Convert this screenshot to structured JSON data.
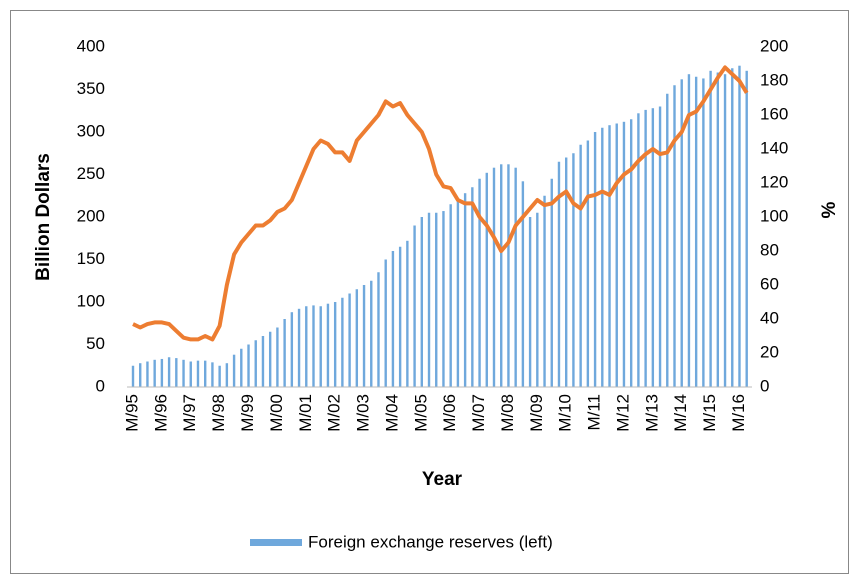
{
  "chart_data": {
    "type": "bar",
    "xlabel": "Year",
    "ylabel": "Billion Dollars",
    "y2label": "%",
    "categories": [
      "M/95",
      null,
      null,
      null,
      "M/96",
      null,
      null,
      null,
      "M/97",
      null,
      null,
      null,
      "M/98",
      null,
      null,
      null,
      "M/99",
      null,
      null,
      null,
      "M/00",
      null,
      null,
      null,
      "M/01",
      null,
      null,
      null,
      "M/02",
      null,
      null,
      null,
      "M/03",
      null,
      null,
      null,
      "M/04",
      null,
      null,
      null,
      "M/05",
      null,
      null,
      null,
      "M/06",
      null,
      null,
      null,
      "M/07",
      null,
      null,
      null,
      "M/08",
      null,
      null,
      null,
      "M/09",
      null,
      null,
      null,
      "M/10",
      null,
      null,
      null,
      "M/11",
      null,
      null,
      null,
      "M/12",
      null,
      null,
      null,
      "M/13",
      null,
      null,
      null,
      "M/14",
      null,
      null,
      null,
      "M/15",
      null,
      null,
      null,
      "M/16",
      null
    ],
    "series": [
      {
        "name": "Foreign exchange reserves (left)",
        "type": "bar",
        "color": "#6fa8dc",
        "values": [
          25,
          28,
          30,
          32,
          33,
          35,
          34,
          32,
          30,
          31,
          31,
          29,
          25,
          28,
          38,
          45,
          50,
          55,
          60,
          65,
          70,
          80,
          88,
          92,
          95,
          96,
          95,
          98,
          100,
          105,
          110,
          115,
          120,
          125,
          135,
          150,
          160,
          165,
          172,
          190,
          200,
          205,
          205,
          207,
          215,
          222,
          228,
          235,
          245,
          252,
          258,
          262,
          262,
          258,
          242,
          200,
          205,
          225,
          245,
          265,
          270,
          275,
          285,
          290,
          300,
          305,
          308,
          310,
          312,
          315,
          322,
          326,
          328,
          330,
          345,
          355,
          362,
          368,
          365,
          363,
          372,
          370,
          368,
          375,
          378,
          372
        ]
      },
      {
        "type": "line",
        "axis": "y2",
        "color": "#ed7d31",
        "values": [
          37,
          35,
          37,
          38,
          38,
          37,
          33,
          29,
          28,
          28,
          30,
          28,
          36,
          60,
          78,
          85,
          90,
          95,
          95,
          98,
          103,
          105,
          110,
          120,
          130,
          140,
          145,
          143,
          138,
          138,
          133,
          145,
          150,
          155,
          160,
          168,
          165,
          167,
          160,
          155,
          150,
          140,
          125,
          118,
          117,
          110,
          108,
          108,
          100,
          95,
          88,
          80,
          85,
          95,
          100,
          105,
          110,
          107,
          108,
          112,
          115,
          108,
          105,
          112,
          113,
          115,
          113,
          120,
          125,
          128,
          133,
          137,
          140,
          137,
          138,
          145,
          150,
          160,
          162,
          168,
          175,
          182,
          188,
          184,
          180,
          173
        ]
      }
    ],
    "ylim": [
      0,
      400
    ],
    "yticks": [
      0,
      50,
      100,
      150,
      200,
      250,
      300,
      350,
      400
    ],
    "y2lim": [
      0,
      200
    ],
    "y2ticks": [
      0,
      20,
      40,
      60,
      80,
      100,
      120,
      140,
      160,
      180,
      200
    ],
    "legend": "bottom"
  }
}
